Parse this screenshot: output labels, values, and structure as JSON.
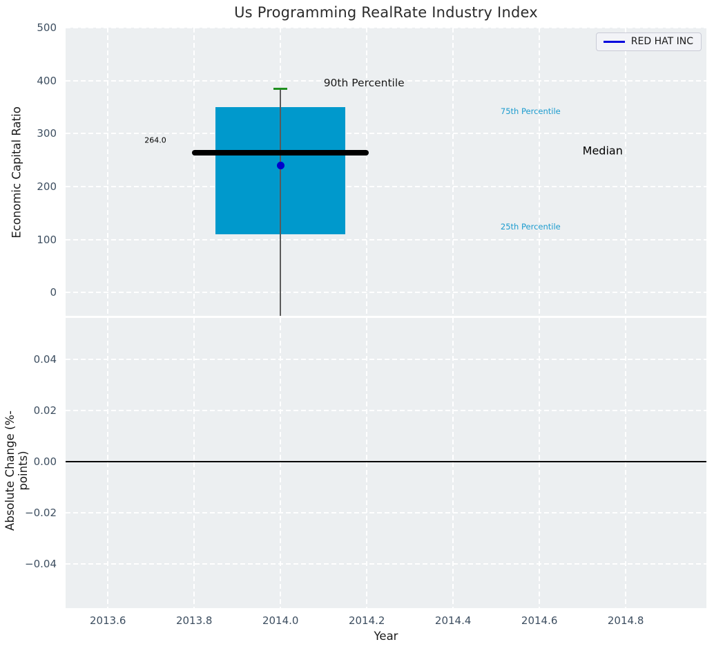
{
  "figure": {
    "title": "Us Programming RealRate Industry Index",
    "xlabel": "Year",
    "legend": {
      "label": "RED HAT INC",
      "line_color": "#0000dd"
    },
    "top_plot": {
      "ylabel": "Economic Capital Ratio"
    },
    "bottom_plot": {
      "ylabel": "Absolute Change (%-points)"
    }
  },
  "chart_data": [
    {
      "type": "box",
      "title": "Us Programming RealRate Industry Index",
      "xlabel": "Year",
      "ylabel": "Economic Capital Ratio",
      "xlim": [
        2013.502,
        2014.987
      ],
      "ylim": [
        -44,
        500
      ],
      "xticks": [
        2013.6,
        2013.8,
        2014.0,
        2014.2,
        2014.4,
        2014.6,
        2014.8
      ],
      "xtick_labels": [
        "2013.6",
        "2013.8",
        "2014.0",
        "2014.2",
        "2014.4",
        "2014.6",
        "2014.8"
      ],
      "yticks": [
        0,
        100,
        200,
        300,
        400,
        500
      ],
      "ytick_labels": [
        "0",
        "100",
        "200",
        "300",
        "400",
        "500"
      ],
      "grid": true,
      "legend_position": "upper right",
      "legend_label": "RED HAT INC",
      "box": {
        "x": 2014.0,
        "q1": 110,
        "median": 264.0,
        "q3": 350,
        "p90": 385,
        "box_half_width": 0.15,
        "median_half_width": 0.205,
        "cap_half_width": 0.016,
        "whisker_extends_below_axis": true,
        "box_color": "#0099cc",
        "median_color": "#000000",
        "cap_color": "#1f8f1f",
        "whisker_color": "#5a5a5a"
      },
      "company_point": {
        "label": "RED HAT INC",
        "x": 2014.0,
        "y": 240,
        "color": "#0000cc"
      },
      "annotations": [
        {
          "name": "median-value-label",
          "text": "264.0",
          "x": 2013.71,
          "y": 287,
          "color": "#000000",
          "size": 11,
          "anchor": "center"
        },
        {
          "name": "p90-label",
          "text": "90th Percentile",
          "x": 2014.1,
          "y": 396,
          "color": "#1a1a1a",
          "size": 15.5,
          "anchor": "left"
        },
        {
          "name": "p75-label",
          "text": "75th Percentile",
          "x": 2014.51,
          "y": 342,
          "color": "#1b9bce",
          "size": 11.5,
          "anchor": "left"
        },
        {
          "name": "median-label",
          "text": "Median",
          "x": 2014.7,
          "y": 268,
          "color": "#000000",
          "size": 16,
          "anchor": "left"
        },
        {
          "name": "p25-label",
          "text": "25th Percentile",
          "x": 2014.51,
          "y": 124,
          "color": "#1b9bce",
          "size": 11.5,
          "anchor": "left"
        }
      ]
    },
    {
      "type": "line",
      "ylabel": "Absolute Change (%-points)",
      "xlabel": "Year",
      "xlim": [
        2013.502,
        2014.987
      ],
      "ylim": [
        -0.0573,
        0.0562
      ],
      "xticks": [
        2013.6,
        2013.8,
        2014.0,
        2014.2,
        2014.4,
        2014.6,
        2014.8
      ],
      "yticks": [
        -0.04,
        -0.02,
        0.0,
        0.02,
        0.04
      ],
      "ytick_labels": [
        "−0.04",
        "−0.02",
        "0.00",
        "0.02",
        "0.04"
      ],
      "grid": true,
      "zero_line": {
        "y": 0.0,
        "color": "#000000"
      },
      "series": []
    }
  ]
}
